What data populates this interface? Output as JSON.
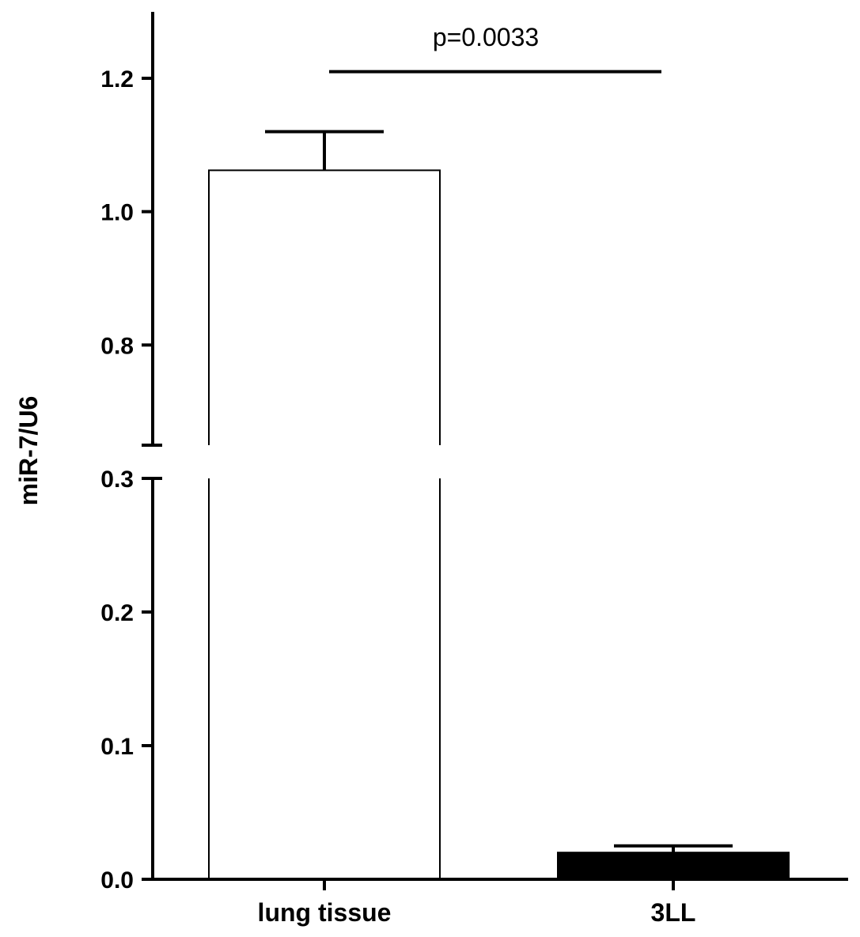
{
  "chart_data": {
    "type": "bar",
    "title": "",
    "xlabel": "",
    "ylabel": "miR-7/U6",
    "categories": [
      "lung tissue",
      "3LL"
    ],
    "values": [
      1.062,
      0.02
    ],
    "errors": [
      0.058,
      0.005
    ],
    "bar_fills": [
      "#ffffff",
      "#000000"
    ],
    "y_axis_break": {
      "lower_segment": [
        0.0,
        0.3
      ],
      "upper_segment": [
        0.65,
        1.3
      ]
    },
    "yticks_lower": [
      0.0,
      0.1,
      0.2,
      0.3
    ],
    "yticks_upper": [
      0.8,
      1.0,
      1.2
    ],
    "ytick_labels_lower": [
      "0.0",
      "0.1",
      "0.2",
      "0.3"
    ],
    "ytick_labels_upper": [
      "0.8",
      "1.0",
      "1.2"
    ],
    "annotation": {
      "text": "p=0.0033",
      "between": [
        "lung tissue",
        "3LL"
      ],
      "y": 1.21
    },
    "grid": false,
    "legend": "none"
  }
}
